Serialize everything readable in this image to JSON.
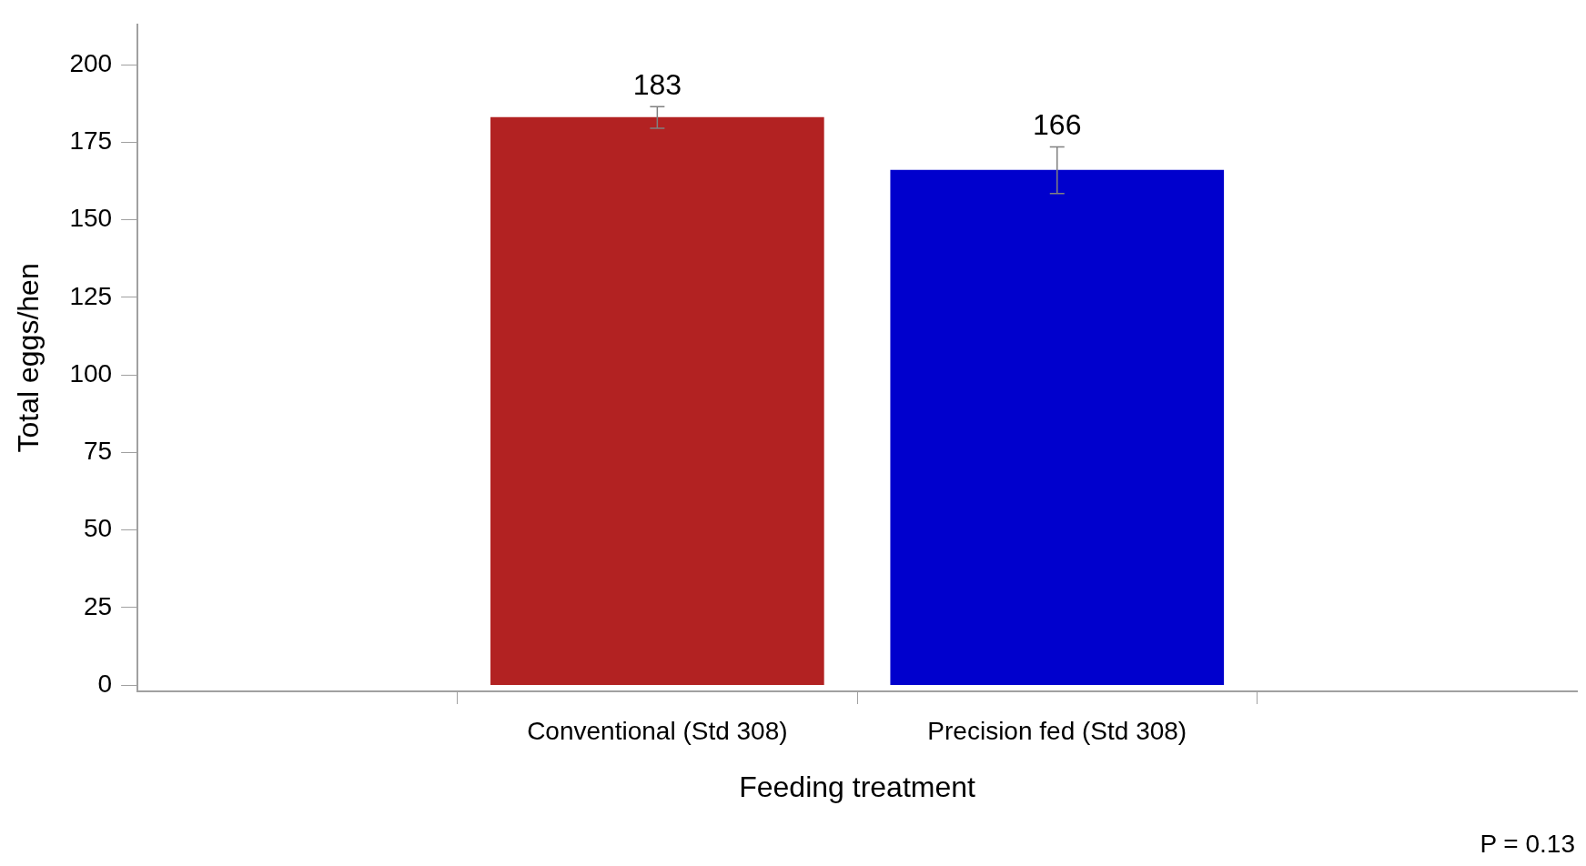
{
  "chart_data": {
    "type": "bar",
    "xlabel": "Feeding treatment",
    "ylabel": "Total eggs/hen",
    "categories": [
      "Conventional (Std 308)",
      "Precision fed (Std 308)"
    ],
    "values": [
      183,
      166
    ],
    "colors": [
      "#b22222",
      "#0000cd"
    ],
    "errors": [
      3.5,
      7.5
    ],
    "data_labels": true,
    "ylim": [
      -2,
      213
    ],
    "yticks": [
      0,
      25,
      50,
      75,
      100,
      125,
      150,
      175,
      200
    ],
    "grid": false,
    "legend": false,
    "annotations": [
      "P = 0.13"
    ]
  }
}
